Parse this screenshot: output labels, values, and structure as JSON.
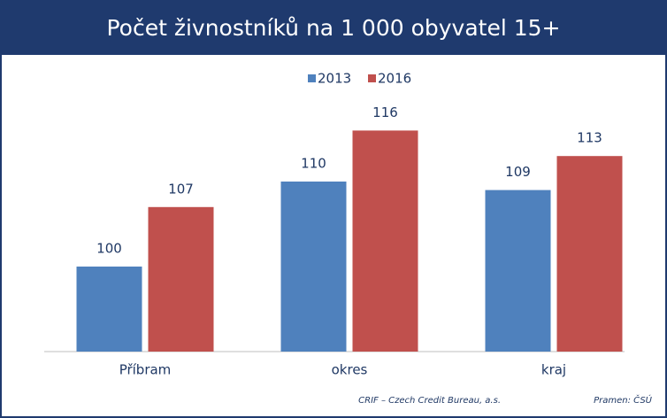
{
  "chart_data": {
    "type": "bar",
    "title": "Počet živnostníků na 1 000 obyvatel 15+",
    "categories": [
      "Příbram",
      "okres",
      "kraj"
    ],
    "series": [
      {
        "name": "2013",
        "color": "#4f81bd",
        "values": [
          100,
          110,
          109
        ]
      },
      {
        "name": "2016",
        "color": "#c0504d",
        "values": [
          107,
          116,
          113
        ]
      }
    ],
    "ylim": [
      90,
      120
    ],
    "legend": "top",
    "footer": {
      "credit": "CRIF – Czech Credit Bureau, a.s.",
      "source": "Pramen: ČSÚ"
    }
  }
}
